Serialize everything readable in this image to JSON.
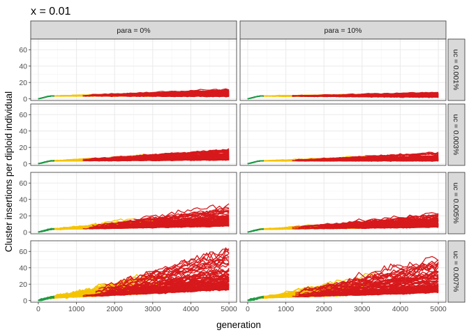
{
  "chart_data": {
    "type": "line",
    "title": "x = 0.01",
    "xlabel": "generation",
    "ylabel": "Cluster insertions per diploid individual",
    "xlim": [
      -200,
      5200
    ],
    "ylim": [
      -2,
      73
    ],
    "x_ticks": [
      0,
      1000,
      2000,
      3000,
      4000,
      5000
    ],
    "y_ticks": [
      0,
      20,
      40,
      60
    ],
    "grid": true,
    "facet_columns": [
      "para = 0%",
      "para = 10%"
    ],
    "facet_rows": [
      "uc = 0.001%",
      "uc = 0.003%",
      "uc = 0.005%",
      "uc = 0.007%"
    ],
    "phase_colors": {
      "early": "#1f9a48",
      "middle": "#f5c400",
      "late": "#d7191c"
    },
    "trajectories_per_panel": 100,
    "panels": [
      {
        "column": "para = 0%",
        "row": "uc = 0.001%",
        "approx_max_final": 12,
        "approx_median_final": 6
      },
      {
        "column": "para = 10%",
        "row": "uc = 0.001%",
        "approx_max_final": 8,
        "approx_median_final": 4
      },
      {
        "column": "para = 0%",
        "row": "uc = 0.003%",
        "approx_max_final": 19,
        "approx_median_final": 9
      },
      {
        "column": "para = 10%",
        "row": "uc = 0.003%",
        "approx_max_final": 14,
        "approx_median_final": 7
      },
      {
        "column": "para = 0%",
        "row": "uc = 0.005%",
        "approx_max_final": 38,
        "approx_median_final": 14
      },
      {
        "column": "para = 10%",
        "row": "uc = 0.005%",
        "approx_max_final": 24,
        "approx_median_final": 11
      },
      {
        "column": "para = 0%",
        "row": "uc = 0.007%",
        "approx_max_final": 70,
        "approx_median_final": 25
      },
      {
        "column": "para = 10%",
        "row": "uc = 0.007%",
        "approx_max_final": 55,
        "approx_median_final": 18
      }
    ]
  }
}
